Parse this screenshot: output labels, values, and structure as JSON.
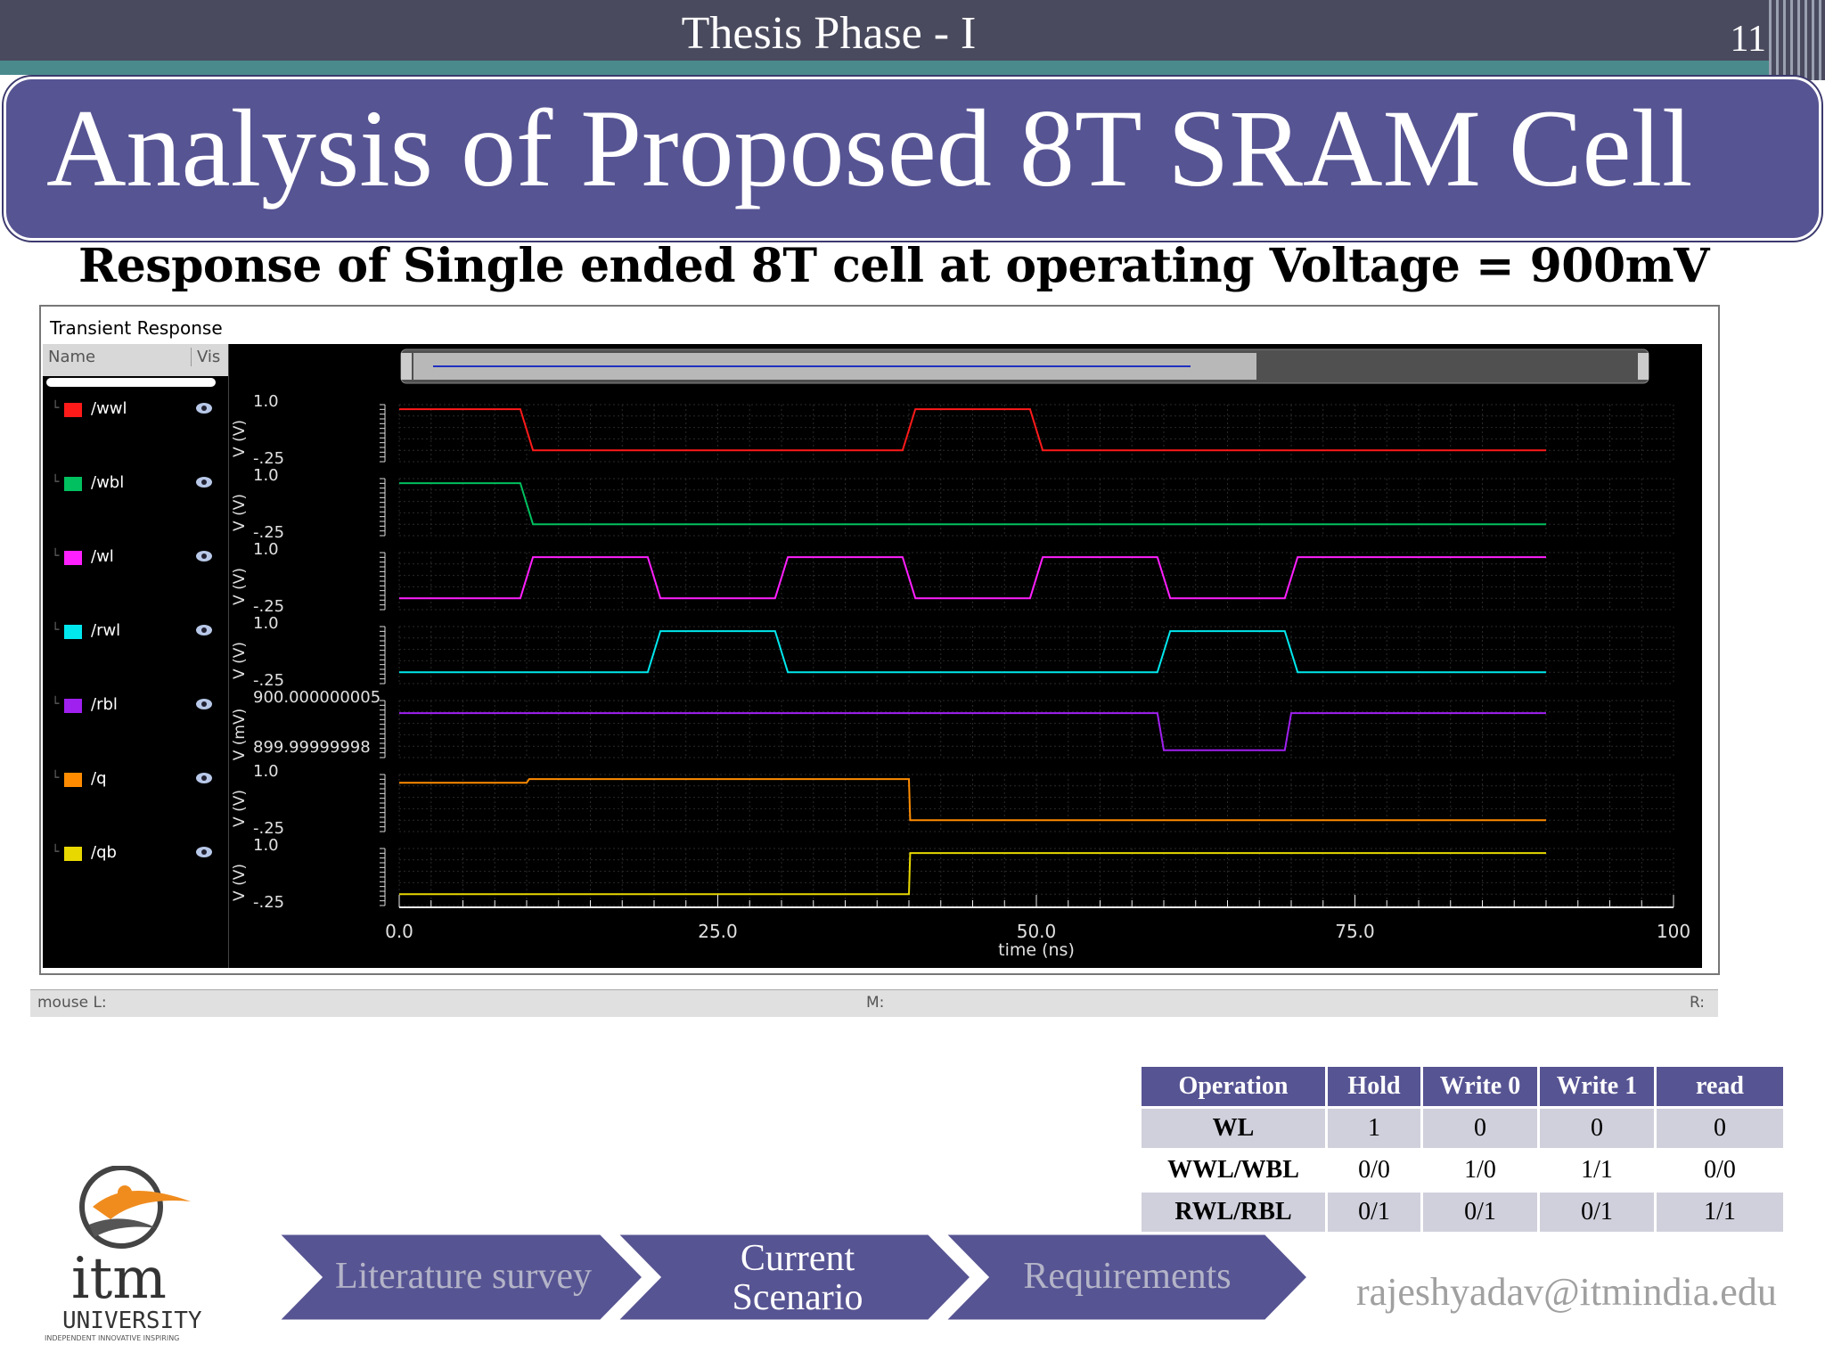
{
  "header": {
    "title": "Thesis Phase - I",
    "slide_number": "11"
  },
  "slide": {
    "title": "Analysis of Proposed 8T SRAM Cell",
    "subtitle": "Response of Single ended 8T cell at operating Voltage = 900mV"
  },
  "waveform_window": {
    "title": "Transient Response",
    "list_header": {
      "name": "Name",
      "vis": "Vis"
    },
    "signals": [
      {
        "name": "/wwl",
        "color": "#ff1a1a"
      },
      {
        "name": "/wbl",
        "color": "#00c060"
      },
      {
        "name": "/wl",
        "color": "#ff20ff"
      },
      {
        "name": "/rwl",
        "color": "#00e8ee"
      },
      {
        "name": "/rbl",
        "color": "#a020f0"
      },
      {
        "name": "/q",
        "color": "#ff8c00"
      },
      {
        "name": "/qb",
        "color": "#e8d800"
      }
    ],
    "status": {
      "left": "mouse L:",
      "middle": "M:",
      "right": "R:"
    }
  },
  "chart_data": {
    "type": "line",
    "title": "",
    "xlabel": "time (ns)",
    "x_ticks": [
      "0.0",
      "25.0",
      "50.0",
      "75.0",
      "100"
    ],
    "xlim": [
      0,
      100
    ],
    "grid": true,
    "panels": [
      {
        "name": "/wwl",
        "ylabel": "V (V)",
        "y_top": "1.0",
        "y_bottom": "-.25",
        "ylim": [
          -0.25,
          1.0
        ],
        "points": [
          [
            0,
            0.9
          ],
          [
            9.5,
            0.9
          ],
          [
            10.5,
            0
          ],
          [
            39.5,
            0
          ],
          [
            40.5,
            0.9
          ],
          [
            49.5,
            0.9
          ],
          [
            50.5,
            0
          ],
          [
            90,
            0
          ]
        ]
      },
      {
        "name": "/wbl",
        "ylabel": "V (V)",
        "y_top": "1.0",
        "y_bottom": "-.25",
        "ylim": [
          -0.25,
          1.0
        ],
        "points": [
          [
            0,
            0.9
          ],
          [
            9.5,
            0.9
          ],
          [
            10.5,
            0
          ],
          [
            90,
            0
          ]
        ]
      },
      {
        "name": "/wl",
        "ylabel": "V (V)",
        "y_top": "1.0",
        "y_bottom": "-.25",
        "ylim": [
          -0.25,
          1.0
        ],
        "points": [
          [
            0,
            0
          ],
          [
            9.5,
            0
          ],
          [
            10.5,
            0.9
          ],
          [
            19.5,
            0.9
          ],
          [
            20.5,
            0
          ],
          [
            29.5,
            0
          ],
          [
            30.5,
            0.9
          ],
          [
            39.5,
            0.9
          ],
          [
            40.5,
            0
          ],
          [
            49.5,
            0
          ],
          [
            50.5,
            0.9
          ],
          [
            59.5,
            0.9
          ],
          [
            60.5,
            0
          ],
          [
            69.5,
            0
          ],
          [
            70.5,
            0.9
          ],
          [
            90,
            0.9
          ]
        ]
      },
      {
        "name": "/rwl",
        "ylabel": "V (V)",
        "y_top": "1.0",
        "y_bottom": "-.25",
        "ylim": [
          -0.25,
          1.0
        ],
        "points": [
          [
            0,
            0
          ],
          [
            19.5,
            0
          ],
          [
            20.5,
            0.9
          ],
          [
            29.5,
            0.9
          ],
          [
            30.5,
            0
          ],
          [
            59.5,
            0
          ],
          [
            60.5,
            0.9
          ],
          [
            69.5,
            0.9
          ],
          [
            70.5,
            0
          ],
          [
            90,
            0
          ]
        ]
      },
      {
        "name": "/rbl",
        "ylabel": "V (mV)",
        "y_top": "900.000000005",
        "y_bottom": "899.99999998",
        "ylim": [
          0,
          1
        ],
        "points": [
          [
            0,
            0.78
          ],
          [
            59.5,
            0.78
          ],
          [
            60,
            0.13
          ],
          [
            69.5,
            0.13
          ],
          [
            70,
            0.78
          ],
          [
            90,
            0.78
          ]
        ]
      },
      {
        "name": "/q",
        "ylabel": "V (V)",
        "y_top": "1.0",
        "y_bottom": "-.25",
        "ylim": [
          -0.25,
          1.0
        ],
        "points": [
          [
            0,
            0.82
          ],
          [
            10,
            0.82
          ],
          [
            10.2,
            0.9
          ],
          [
            40,
            0.9
          ],
          [
            40.1,
            0
          ],
          [
            90,
            0
          ]
        ]
      },
      {
        "name": "/qb",
        "ylabel": "V (V)",
        "y_top": "1.0",
        "y_bottom": "-.25",
        "ylim": [
          -0.25,
          1.0
        ],
        "points": [
          [
            0,
            0
          ],
          [
            40,
            0
          ],
          [
            40.1,
            0.9
          ],
          [
            90,
            0.9
          ]
        ]
      }
    ]
  },
  "table": {
    "headers": [
      "Operation",
      "Hold",
      "Write 0",
      "Write 1",
      "read"
    ],
    "rows": [
      [
        "WL",
        "1",
        "0",
        "0",
        "0"
      ],
      [
        "WWL/WBL",
        "0/0",
        "1/0",
        "1/1",
        "0/0"
      ],
      [
        "RWL/RBL",
        "0/1",
        "0/1",
        "0/1",
        "1/1"
      ]
    ]
  },
  "nav": {
    "literature": "Literature survey",
    "current_1": "Current",
    "current_2": "Scenario",
    "requirements": "Requirements"
  },
  "footer": {
    "email": "rajeshyadav@itmindia.edu"
  },
  "logo": {
    "text": "itm",
    "sub": "UNIVERSITY",
    "tag": "INDEPENDENT INNOVATIVE INSPIRING"
  }
}
